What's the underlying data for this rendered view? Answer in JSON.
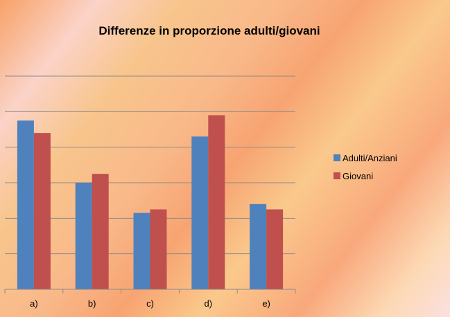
{
  "chart_data": {
    "type": "bar",
    "title": "Differenze in proporzione adulti/giovani",
    "categories": [
      "a)",
      "b)",
      "c)",
      "d)",
      "e)"
    ],
    "series": [
      {
        "name": "Adulti/Anziani",
        "color": "#4f81bd",
        "values": [
          4.75,
          3.0,
          2.15,
          4.3,
          2.4
        ]
      },
      {
        "name": "Giovani",
        "color": "#c0504d",
        "values": [
          4.4,
          3.25,
          2.25,
          4.9,
          2.25
        ]
      }
    ],
    "ylim": [
      0,
      6
    ],
    "grid": true,
    "y_tick_labels_shown": false,
    "legend_position": "right",
    "xlabel": "",
    "ylabel": ""
  }
}
